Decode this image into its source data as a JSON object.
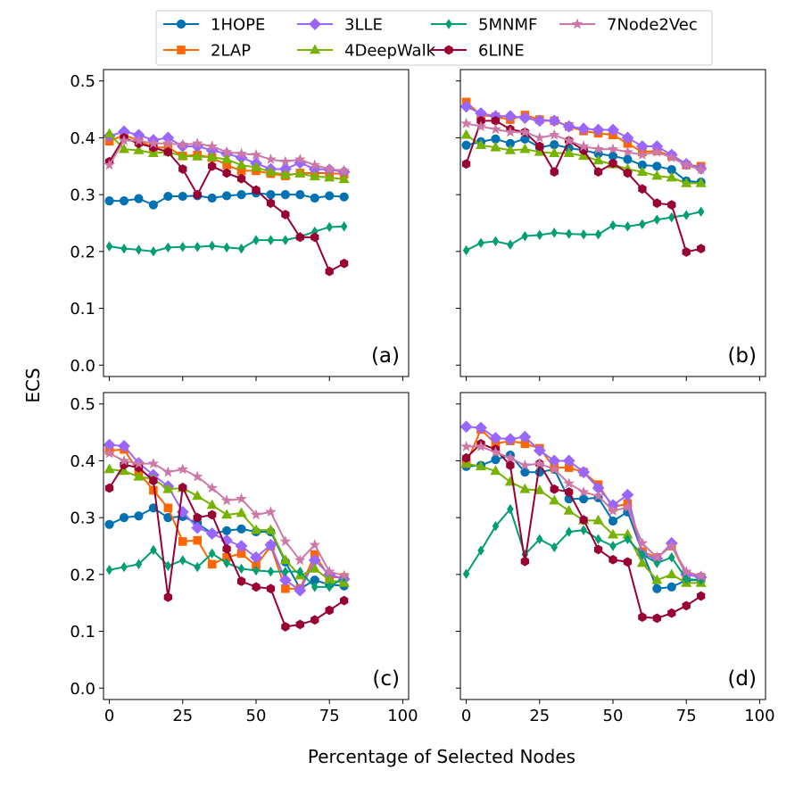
{
  "chart_data": {
    "type": "line",
    "ylabel": "ECS",
    "xlabel": "Percentage of Selected Nodes",
    "xlim": [
      -2,
      102
    ],
    "ylim": [
      -0.02,
      0.52
    ],
    "xticks": [
      0,
      25,
      50,
      75,
      100
    ],
    "yticks": [
      0.0,
      0.1,
      0.2,
      0.3,
      0.4,
      0.5
    ],
    "x": [
      0,
      5,
      10,
      15,
      20,
      25,
      30,
      35,
      40,
      45,
      50,
      55,
      60,
      65,
      70,
      75,
      80
    ],
    "legend": {
      "position": "top-center",
      "ncol": 4
    },
    "series_styles": [
      {
        "name": "1HOPE",
        "color": "#0072b2",
        "marker": "circle"
      },
      {
        "name": "2LAP",
        "color": "#ff6600",
        "marker": "square"
      },
      {
        "name": "3LLE",
        "color": "#9966ff",
        "marker": "diamond"
      },
      {
        "name": "4DeepWalk",
        "color": "#77b300",
        "marker": "triangle"
      },
      {
        "name": "5MNMF",
        "color": "#009e73",
        "marker": "thin-diamond"
      },
      {
        "name": "6LINE",
        "color": "#990033",
        "marker": "hexagon"
      },
      {
        "name": "7Node2Vec",
        "color": "#cc79a7",
        "marker": "star"
      }
    ],
    "panels": [
      {
        "label": "(a)",
        "series": [
          {
            "name": "1HOPE",
            "values": [
              0.289,
              0.289,
              0.293,
              0.282,
              0.297,
              0.297,
              0.298,
              0.294,
              0.298,
              0.3,
              0.303,
              0.3,
              0.3,
              0.3,
              0.294,
              0.298,
              0.296
            ]
          },
          {
            "name": "2LAP",
            "values": [
              0.394,
              0.405,
              0.395,
              0.383,
              0.383,
              0.368,
              0.37,
              0.365,
              0.352,
              0.342,
              0.342,
              0.337,
              0.333,
              0.338,
              0.338,
              0.338,
              0.336
            ]
          },
          {
            "name": "3LLE",
            "values": [
              0.403,
              0.411,
              0.405,
              0.396,
              0.4,
              0.385,
              0.385,
              0.378,
              0.372,
              0.365,
              0.355,
              0.345,
              0.345,
              0.356,
              0.345,
              0.344,
              0.34
            ]
          },
          {
            "name": "4DeepWalk",
            "values": [
              0.407,
              0.38,
              0.378,
              0.373,
              0.375,
              0.368,
              0.367,
              0.366,
              0.362,
              0.352,
              0.348,
              0.34,
              0.335,
              0.337,
              0.332,
              0.33,
              0.327
            ]
          },
          {
            "name": "5MNMF",
            "values": [
              0.209,
              0.205,
              0.203,
              0.2,
              0.207,
              0.208,
              0.208,
              0.21,
              0.207,
              0.205,
              0.22,
              0.22,
              0.22,
              0.226,
              0.235,
              0.243,
              0.244
            ]
          },
          {
            "name": "6LINE",
            "values": [
              0.358,
              0.4,
              0.39,
              0.383,
              0.375,
              0.345,
              0.3,
              0.35,
              0.338,
              0.328,
              0.308,
              0.285,
              0.265,
              0.225,
              0.225,
              0.165,
              0.179
            ]
          },
          {
            "name": "7Node2Vec",
            "values": [
              0.352,
              0.395,
              0.395,
              0.39,
              0.39,
              0.388,
              0.39,
              0.385,
              0.375,
              0.372,
              0.37,
              0.362,
              0.358,
              0.362,
              0.352,
              0.345,
              0.342
            ]
          }
        ]
      },
      {
        "label": "(b)",
        "series": [
          {
            "name": "1HOPE",
            "values": [
              0.387,
              0.393,
              0.398,
              0.39,
              0.398,
              0.383,
              0.388,
              0.382,
              0.378,
              0.372,
              0.368,
              0.362,
              0.352,
              0.35,
              0.344,
              0.324,
              0.322
            ]
          },
          {
            "name": "2LAP",
            "values": [
              0.463,
              0.44,
              0.437,
              0.432,
              0.44,
              0.432,
              0.43,
              0.42,
              0.412,
              0.408,
              0.405,
              0.39,
              0.375,
              0.377,
              0.368,
              0.352,
              0.35
            ]
          },
          {
            "name": "3LLE",
            "values": [
              0.455,
              0.443,
              0.438,
              0.438,
              0.435,
              0.43,
              0.43,
              0.42,
              0.416,
              0.414,
              0.414,
              0.4,
              0.385,
              0.385,
              0.37,
              0.354,
              0.346
            ]
          },
          {
            "name": "4DeepWalk",
            "values": [
              0.405,
              0.387,
              0.383,
              0.378,
              0.38,
              0.375,
              0.373,
              0.373,
              0.368,
              0.36,
              0.353,
              0.345,
              0.34,
              0.333,
              0.33,
              0.32,
              0.32
            ]
          },
          {
            "name": "5MNMF",
            "values": [
              0.202,
              0.215,
              0.218,
              0.212,
              0.227,
              0.229,
              0.233,
              0.231,
              0.23,
              0.23,
              0.246,
              0.244,
              0.248,
              0.256,
              0.26,
              0.264,
              0.27
            ]
          },
          {
            "name": "6LINE",
            "values": [
              0.354,
              0.43,
              0.43,
              0.415,
              0.41,
              0.385,
              0.34,
              0.395,
              0.378,
              0.34,
              0.355,
              0.338,
              0.31,
              0.285,
              0.282,
              0.199,
              0.205
            ]
          },
          {
            "name": "7Node2Vec",
            "values": [
              0.425,
              0.42,
              0.415,
              0.41,
              0.41,
              0.4,
              0.405,
              0.395,
              0.385,
              0.38,
              0.38,
              0.375,
              0.37,
              0.375,
              0.365,
              0.352,
              0.344
            ]
          }
        ]
      },
      {
        "label": "(c)",
        "series": [
          {
            "name": "1HOPE",
            "values": [
              0.288,
              0.3,
              0.303,
              0.317,
              0.3,
              0.302,
              0.29,
              0.272,
              0.277,
              0.28,
              0.275,
              0.275,
              0.222,
              0.175,
              0.19,
              0.182,
              0.18
            ]
          },
          {
            "name": "2LAP",
            "values": [
              0.418,
              0.42,
              0.38,
              0.348,
              0.317,
              0.258,
              0.26,
              0.218,
              0.23,
              0.237,
              0.215,
              0.25,
              0.175,
              0.175,
              0.235,
              0.195,
              0.195
            ]
          },
          {
            "name": "3LLE",
            "values": [
              0.428,
              0.426,
              0.396,
              0.375,
              0.355,
              0.31,
              0.282,
              0.272,
              0.26,
              0.25,
              0.23,
              0.252,
              0.19,
              0.172,
              0.225,
              0.2,
              0.192
            ]
          },
          {
            "name": "4DeepWalk",
            "values": [
              0.385,
              0.382,
              0.372,
              0.368,
              0.35,
              0.352,
              0.338,
              0.322,
              0.305,
              0.308,
              0.278,
              0.278,
              0.225,
              0.198,
              0.21,
              0.19,
              0.185
            ]
          },
          {
            "name": "5MNMF",
            "values": [
              0.208,
              0.213,
              0.218,
              0.243,
              0.215,
              0.225,
              0.213,
              0.237,
              0.22,
              0.21,
              0.207,
              0.205,
              0.205,
              0.205,
              0.178,
              0.178,
              0.195
            ]
          },
          {
            "name": "6LINE",
            "values": [
              0.352,
              0.393,
              0.388,
              0.365,
              0.16,
              0.353,
              0.3,
              0.305,
              0.245,
              0.188,
              0.178,
              0.175,
              0.108,
              0.112,
              0.12,
              0.137,
              0.154
            ]
          },
          {
            "name": "7Node2Vec",
            "values": [
              0.413,
              0.4,
              0.395,
              0.395,
              0.38,
              0.385,
              0.372,
              0.352,
              0.33,
              0.333,
              0.305,
              0.31,
              0.258,
              0.225,
              0.252,
              0.205,
              0.198
            ]
          }
        ]
      },
      {
        "label": "(d)",
        "series": [
          {
            "name": "1HOPE",
            "values": [
              0.39,
              0.392,
              0.402,
              0.41,
              0.38,
              0.38,
              0.385,
              0.333,
              0.333,
              0.335,
              0.294,
              0.31,
              0.24,
              0.175,
              0.178,
              0.19,
              0.19
            ]
          },
          {
            "name": "2LAP",
            "values": [
              0.395,
              0.455,
              0.43,
              0.435,
              0.43,
              0.422,
              0.388,
              0.388,
              0.38,
              0.358,
              0.318,
              0.325,
              0.24,
              0.23,
              0.25,
              0.2,
              0.195
            ]
          },
          {
            "name": "3LLE",
            "values": [
              0.46,
              0.458,
              0.44,
              0.438,
              0.442,
              0.418,
              0.4,
              0.4,
              0.38,
              0.352,
              0.322,
              0.34,
              0.235,
              0.228,
              0.255,
              0.2,
              0.195
            ]
          },
          {
            "name": "4DeepWalk",
            "values": [
              0.395,
              0.39,
              0.382,
              0.363,
              0.35,
              0.348,
              0.33,
              0.312,
              0.295,
              0.295,
              0.27,
              0.27,
              0.22,
              0.19,
              0.2,
              0.185,
              0.185
            ]
          },
          {
            "name": "5MNMF",
            "values": [
              0.201,
              0.242,
              0.285,
              0.315,
              0.235,
              0.262,
              0.248,
              0.275,
              0.278,
              0.262,
              0.25,
              0.262,
              0.235,
              0.22,
              0.23,
              0.192,
              0.19
            ]
          },
          {
            "name": "6LINE",
            "values": [
              0.405,
              0.43,
              0.42,
              0.392,
              0.223,
              0.395,
              0.35,
              0.345,
              0.296,
              0.244,
              0.226,
              0.222,
              0.125,
              0.123,
              0.132,
              0.145,
              0.162
            ]
          },
          {
            "name": "7Node2Vec",
            "values": [
              0.425,
              0.425,
              0.415,
              0.405,
              0.392,
              0.395,
              0.385,
              0.36,
              0.345,
              0.338,
              0.312,
              0.318,
              0.255,
              0.23,
              0.25,
              0.205,
              0.197
            ]
          }
        ]
      }
    ]
  }
}
